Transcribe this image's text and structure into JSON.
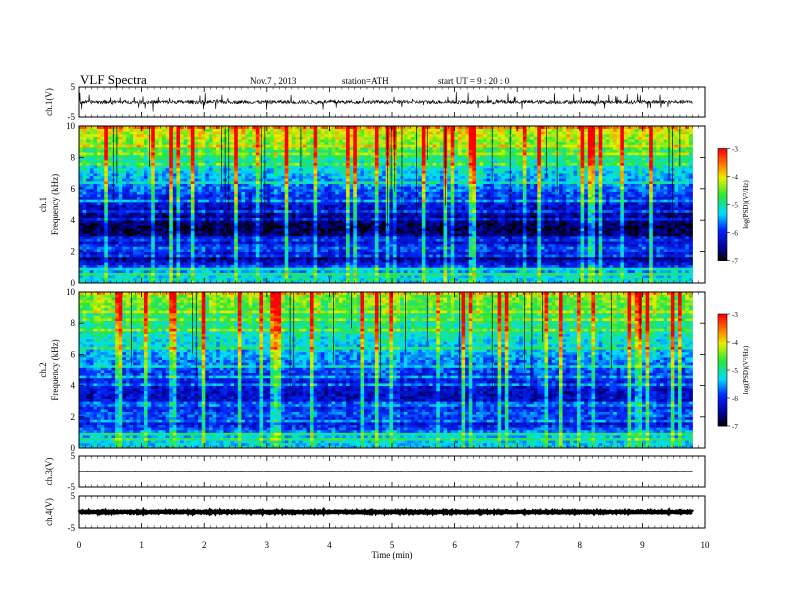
{
  "header": {
    "title": "VLF Spectra",
    "date": "Nov.7 , 2013",
    "station": "station=ATH",
    "start": "start UT = 9 : 20 : 0"
  },
  "chart_data": [
    {
      "type": "line",
      "panel": "waveform-ch1",
      "ylabel": "ch.1(V)",
      "ylim": [
        -5,
        5
      ],
      "yticks": [
        "5",
        "-5"
      ],
      "xlim": [
        0,
        10
      ],
      "data_extent_min": 9.8,
      "baseline_v": 0.0,
      "noise_amplitude_v": 0.6,
      "spike_amplitude_v": 3.0
    },
    {
      "type": "heatmap",
      "panel": "spectrogram-ch1",
      "ylabel": "ch.1\nFrequency (kHz)",
      "ylabel_lines": [
        "ch.1",
        "Frequency (kHz)"
      ],
      "ylim": [
        0,
        10
      ],
      "yticks": [
        "0",
        "2",
        "4",
        "6",
        "8",
        "10"
      ],
      "xlim": [
        0,
        10
      ],
      "data_extent_min": 9.8,
      "colorbar": {
        "label": "log(PSD)(V²/Hz)",
        "range": [
          -7,
          -3
        ],
        "ticks": [
          "-3",
          "-4",
          "-5",
          "-6",
          "-7"
        ]
      },
      "mean_log_psd_by_freq": [
        {
          "f_khz": 0.3,
          "value": -5.2
        },
        {
          "f_khz": 0.9,
          "value": -5.6
        },
        {
          "f_khz": 1.6,
          "value": -6.6
        },
        {
          "f_khz": 2.2,
          "value": -5.7
        },
        {
          "f_khz": 2.8,
          "value": -6.5
        },
        {
          "f_khz": 3.5,
          "value": -6.8
        },
        {
          "f_khz": 4.5,
          "value": -6.4
        },
        {
          "f_khz": 5.5,
          "value": -5.9
        },
        {
          "f_khz": 6.5,
          "value": -5.5
        },
        {
          "f_khz": 7.5,
          "value": -5.1
        },
        {
          "f_khz": 8.5,
          "value": -4.6
        },
        {
          "f_khz": 9.5,
          "value": -4.1
        }
      ]
    },
    {
      "type": "heatmap",
      "panel": "spectrogram-ch2",
      "ylabel": "ch.2\nFrequency (kHz)",
      "ylabel_lines": [
        "ch.2",
        "Frequency (kHz)"
      ],
      "ylim": [
        0,
        10
      ],
      "yticks": [
        "0",
        "2",
        "4",
        "6",
        "8",
        "10"
      ],
      "xlim": [
        0,
        10
      ],
      "data_extent_min": 9.8,
      "colorbar": {
        "label": "log(PSD)(V²/Hz)",
        "range": [
          -7,
          -3
        ],
        "ticks": [
          "-3",
          "-4",
          "-5",
          "-6",
          "-7"
        ]
      },
      "mean_log_psd_by_freq": [
        {
          "f_khz": 0.3,
          "value": -5.3
        },
        {
          "f_khz": 0.9,
          "value": -5.4
        },
        {
          "f_khz": 1.6,
          "value": -6.2
        },
        {
          "f_khz": 2.2,
          "value": -5.7
        },
        {
          "f_khz": 2.8,
          "value": -6.2
        },
        {
          "f_khz": 3.5,
          "value": -6.3
        },
        {
          "f_khz": 4.5,
          "value": -6.0
        },
        {
          "f_khz": 5.5,
          "value": -5.6
        },
        {
          "f_khz": 6.5,
          "value": -5.3
        },
        {
          "f_khz": 7.5,
          "value": -5.0
        },
        {
          "f_khz": 8.5,
          "value": -4.8
        },
        {
          "f_khz": 9.5,
          "value": -4.4
        }
      ]
    },
    {
      "type": "line",
      "panel": "waveform-ch3",
      "ylabel": "ch.3(V)",
      "ylim": [
        -5,
        5
      ],
      "yticks": [
        "5",
        "-5"
      ],
      "xlim": [
        0,
        10
      ],
      "data_extent_min": 9.8,
      "baseline_v": 0.0,
      "noise_amplitude_v": 0.05
    },
    {
      "type": "line",
      "panel": "waveform-ch4",
      "ylabel": "ch.4(V)",
      "ylim": [
        -5,
        5
      ],
      "yticks": [
        "5",
        "-5"
      ],
      "xlim": [
        0,
        10
      ],
      "data_extent_min": 9.8,
      "baseline_v": 0.0,
      "noise_amplitude_v": 0.15
    }
  ],
  "xaxis": {
    "label": "Time (min)",
    "ticks": [
      "0",
      "1",
      "2",
      "3",
      "4",
      "5",
      "6",
      "7",
      "8",
      "9",
      "10"
    ]
  }
}
